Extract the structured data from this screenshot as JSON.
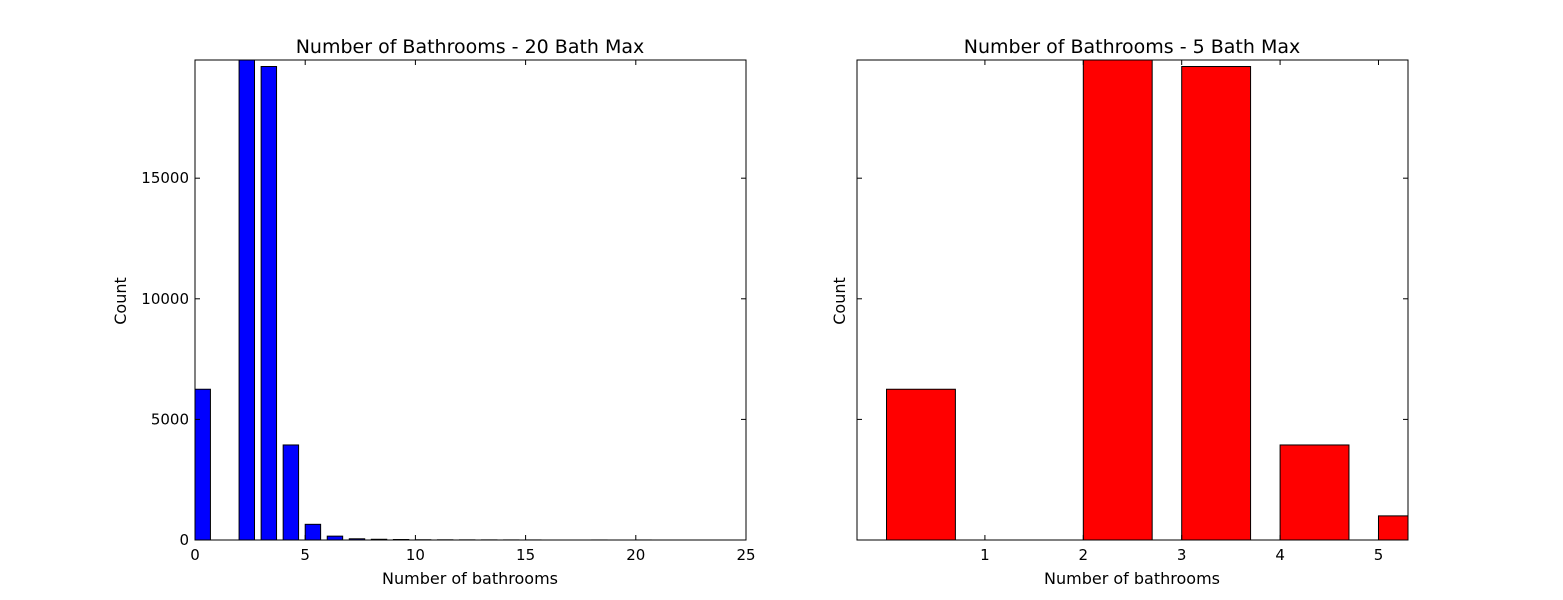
{
  "chart_data": [
    {
      "type": "bar",
      "title": "Number of Bathrooms - 20 Bath Max",
      "xlabel": "Number of bathrooms",
      "ylabel": "Count",
      "xlim": [
        0,
        25
      ],
      "ylim": [
        0,
        19900
      ],
      "xticks": [
        0,
        5,
        10,
        15,
        20,
        25
      ],
      "yticks": [
        0,
        5000,
        10000,
        15000
      ],
      "bar_color": "#0000ff",
      "bar_width": 0.7,
      "x": [
        0,
        2,
        3,
        4,
        5,
        6,
        7,
        8,
        9,
        10,
        11,
        12,
        13,
        14,
        15,
        18,
        20
      ],
      "values": [
        6250,
        19900,
        19630,
        3940,
        650,
        160,
        50,
        30,
        20,
        10,
        8,
        6,
        5,
        4,
        3,
        2,
        2
      ],
      "grid": false
    },
    {
      "type": "bar",
      "title": "Number of Bathrooms - 5 Bath Max",
      "xlabel": "Number of bathrooms",
      "ylabel": "Count",
      "xlim": [
        -0.3,
        5.3
      ],
      "ylim": [
        0,
        19900
      ],
      "xticks": [
        1,
        2,
        3,
        4,
        5
      ],
      "yticks": [
        0,
        5000,
        10000,
        15000
      ],
      "show_ytick_labels": false,
      "bar_color": "#ff0000",
      "bar_width": 0.7,
      "x": [
        0,
        2,
        3,
        4,
        5
      ],
      "values": [
        6250,
        19900,
        19630,
        3940,
        1000
      ],
      "grid": false
    }
  ]
}
